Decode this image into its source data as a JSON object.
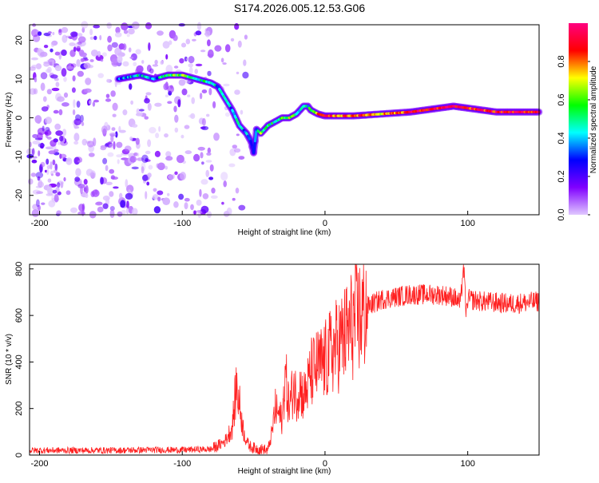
{
  "title": "S174.2026.005.12.53.G06",
  "chart_data": [
    {
      "type": "heatmap",
      "name": "spectrogram",
      "title": "S174.2026.005.12.53.G06",
      "xlabel": "Height of straight line (km)",
      "ylabel": "Frequency (Hz)",
      "xlim": [
        -207,
        150
      ],
      "ylim": [
        -25,
        24
      ],
      "xticks": [
        "-200",
        "-100",
        "0",
        "100"
      ],
      "xtick_values": [
        -200,
        -100,
        0,
        100
      ],
      "yticks": [
        "20",
        "10",
        "0",
        "-10",
        "-20"
      ],
      "ytick_values": [
        20,
        10,
        0,
        -10,
        -20
      ],
      "colorbar": {
        "label": "Normalized spectral amplitude",
        "range": [
          0,
          1
        ],
        "ticks": [
          "0.0",
          "0.2",
          "0.4",
          "0.6",
          "0.8"
        ],
        "tick_values": [
          0,
          0.2,
          0.4,
          0.6,
          0.8
        ],
        "colors": [
          "#e0c8ff",
          "#8000ff",
          "#0000ff",
          "#00ffff",
          "#00ff00",
          "#ffff00",
          "#ff0000",
          "#ff0080"
        ]
      },
      "noise_region_x": [
        -207,
        -80
      ],
      "ridge": {
        "x": [
          -145,
          -130,
          -120,
          -110,
          -100,
          -90,
          -80,
          -75,
          -70,
          -65,
          -60,
          -55,
          -52,
          -50,
          -48,
          -45,
          -40,
          -35,
          -30,
          -25,
          -20,
          -15,
          -12,
          -10,
          -5,
          0,
          10,
          20,
          40,
          60,
          80,
          90,
          100,
          120,
          150
        ],
        "freq": [
          10,
          11,
          10,
          11,
          11,
          10,
          9,
          8,
          5,
          2,
          -2,
          -4,
          -6,
          -9,
          -3,
          -4,
          -2,
          -1,
          0,
          0,
          1,
          3,
          3,
          2,
          1,
          0.5,
          0.5,
          0.5,
          1,
          1.5,
          2.5,
          3,
          2.5,
          1.5,
          1.5
        ],
        "amplitude": [
          0.35,
          0.45,
          0.35,
          0.55,
          0.6,
          0.5,
          0.45,
          0.4,
          0.45,
          0.35,
          0.45,
          0.35,
          0.3,
          0.25,
          0.4,
          0.6,
          0.45,
          0.5,
          0.55,
          0.65,
          0.5,
          0.4,
          0.45,
          0.6,
          0.75,
          0.85,
          0.8,
          0.85,
          0.75,
          0.9,
          0.9,
          0.95,
          0.85,
          0.9,
          0.9
        ]
      }
    },
    {
      "type": "line",
      "name": "snr",
      "xlabel": "Height of straight line (km)",
      "ylabel": "SNR (10 * v/v)",
      "xlim": [
        -207,
        150
      ],
      "ylim": [
        0,
        820
      ],
      "xticks": [
        "-200",
        "-100",
        "0",
        "100"
      ],
      "xtick_values": [
        -200,
        -100,
        0,
        100
      ],
      "yticks": [
        "0",
        "200",
        "400",
        "600",
        "800"
      ],
      "ytick_values": [
        0,
        200,
        400,
        600,
        800
      ],
      "color": "#ff2020",
      "series": [
        {
          "name": "SNR",
          "x": [
            -207,
            -180,
            -150,
            -120,
            -100,
            -85,
            -80,
            -75,
            -70,
            -65,
            -62,
            -59,
            -57,
            -55,
            -53,
            -50,
            -45,
            -40,
            -37,
            -35,
            -33,
            -30,
            -28,
            -25,
            -22,
            -20,
            -18,
            -15,
            -12,
            -10,
            -5,
            0,
            5,
            10,
            15,
            20,
            25,
            30,
            40,
            50,
            60,
            80,
            90,
            95,
            97,
            99,
            100,
            110,
            130,
            150
          ],
          "y": [
            20,
            20,
            20,
            22,
            22,
            25,
            25,
            40,
            60,
            120,
            300,
            180,
            100,
            60,
            40,
            30,
            25,
            20,
            100,
            200,
            180,
            150,
            350,
            200,
            300,
            250,
            300,
            250,
            300,
            350,
            380,
            400,
            450,
            480,
            520,
            570,
            600,
            640,
            670,
            680,
            690,
            690,
            680,
            650,
            820,
            600,
            670,
            660,
            650,
            660
          ]
        }
      ]
    }
  ]
}
